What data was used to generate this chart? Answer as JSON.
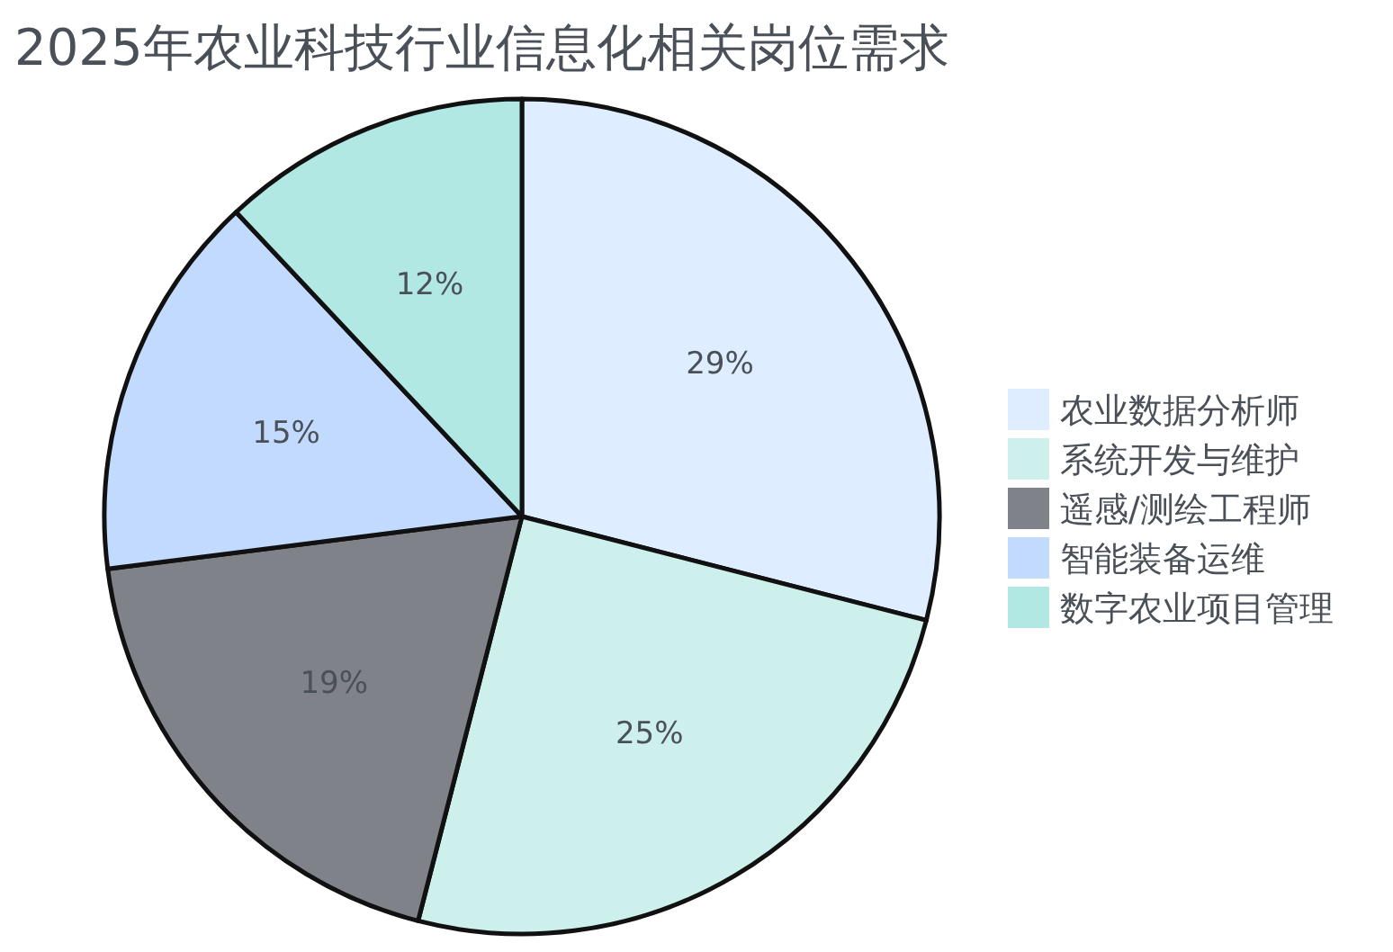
{
  "chart_data": {
    "type": "pie",
    "title": "2025年农业科技行业信息化相关岗位需求",
    "categories": [
      "农业数据分析师",
      "系统开发与维护",
      "遥感/测绘工程师",
      "智能装备运维",
      "数字农业项目管理"
    ],
    "values": [
      29,
      25,
      19,
      15,
      12
    ],
    "colors": [
      "#deedff",
      "#cdf0ed",
      "#7f8389",
      "#c1dafe",
      "#b1e8e3"
    ],
    "value_labels": [
      "29%",
      "25%",
      "19%",
      "15%",
      "12%"
    ],
    "legend": "right"
  }
}
